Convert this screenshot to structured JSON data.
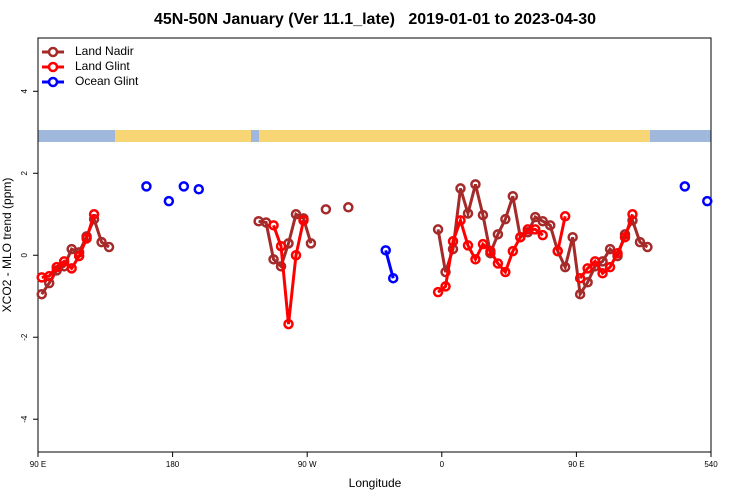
{
  "chart_data": {
    "type": "line",
    "title": "45N-50N January (Ver 11.1_late)   2019-01-01 to 2023-04-30",
    "xlabel": "Longitude",
    "ylabel": "XCO2 - MLO trend (ppm)",
    "xlim": [
      90,
      540
    ],
    "ylim": [
      -4.8,
      5.3
    ],
    "xticks": [
      {
        "value": 90,
        "label": "90 E"
      },
      180,
      {
        "value": 270,
        "label": "90 W"
      },
      {
        "value": 360,
        "label": "0"
      },
      {
        "value": 450,
        "label": "90 E"
      },
      540
    ],
    "yticks": [
      -4,
      -2,
      0,
      2,
      4
    ],
    "legend": "top-left",
    "series": [
      {
        "name": "Land Nadir",
        "color": "#a52a2a",
        "x": [
          92.5,
          97.5,
          102.5,
          107.5,
          112.5,
          117.5,
          122.5,
          127.5,
          132.5,
          137.5,
          237.5,
          242.5,
          247.5,
          252.5,
          257.5,
          262.5,
          267.5,
          272.5,
          282.5,
          297.5,
          357.5,
          362.5,
          367.5,
          372.5,
          377.5,
          382.5,
          387.5,
          392.5,
          397.5,
          402.5,
          407.5,
          412.5,
          417.5,
          422.5,
          427.5,
          432.5,
          437.5,
          442.5,
          447.5,
          452.5,
          457.5,
          462.5,
          467.5,
          472.5,
          477.5,
          482.5,
          487.5,
          492.5,
          497.5
        ],
        "values": [
          -0.95,
          -0.68,
          -0.37,
          -0.27,
          0.15,
          0.07,
          0.46,
          0.88,
          0.32,
          0.2,
          0.83,
          0.8,
          -0.1,
          -0.27,
          0.29,
          1.0,
          0.9,
          0.29,
          1.12,
          1.17,
          0.63,
          -0.41,
          0.15,
          1.63,
          1.02,
          1.73,
          0.98,
          0.05,
          0.51,
          0.88,
          1.44,
          0.44,
          0.56,
          0.93,
          0.83,
          0.73,
          0.1,
          -0.29,
          0.44,
          -0.95,
          -0.66,
          -0.27,
          -0.15,
          0.15,
          -0.02,
          0.51,
          0.85,
          0.32,
          0.2
        ]
      },
      {
        "name": "Land Glint",
        "color": "#ff0000",
        "x": [
          92.5,
          97.5,
          102.5,
          107.5,
          112.5,
          117.5,
          122.5,
          127.5,
          247.5,
          252.5,
          257.5,
          262.5,
          267.5,
          357.5,
          362.5,
          367.5,
          372.5,
          377.5,
          382.5,
          387.5,
          392.5,
          397.5,
          402.5,
          407.5,
          412.5,
          417.5,
          422.5,
          427.5,
          437.5,
          442.5,
          452.5,
          457.5,
          462.5,
          467.5,
          472.5,
          477.5,
          482.5,
          487.5
        ],
        "values": [
          -0.54,
          -0.51,
          -0.29,
          -0.15,
          -0.32,
          -0.02,
          0.41,
          1.0,
          0.73,
          0.22,
          -1.68,
          0,
          0.85,
          -0.9,
          -0.76,
          0.34,
          0.85,
          0.24,
          -0.1,
          0.27,
          0.1,
          -0.2,
          -0.41,
          0.1,
          0.44,
          0.63,
          0.63,
          0.49,
          0.1,
          0.95,
          -0.56,
          -0.32,
          -0.15,
          -0.44,
          -0.29,
          0.05,
          0.44,
          1.0
        ]
      },
      {
        "name": "Ocean Glint",
        "color": "#0000ff",
        "x": [
          162.5,
          177.5,
          187.5,
          197.5,
          322.5,
          327.5,
          522.5,
          537.5
        ],
        "values": [
          1.68,
          1.32,
          1.68,
          1.61,
          0.12,
          -0.56,
          1.68,
          1.32
        ]
      }
    ]
  }
}
